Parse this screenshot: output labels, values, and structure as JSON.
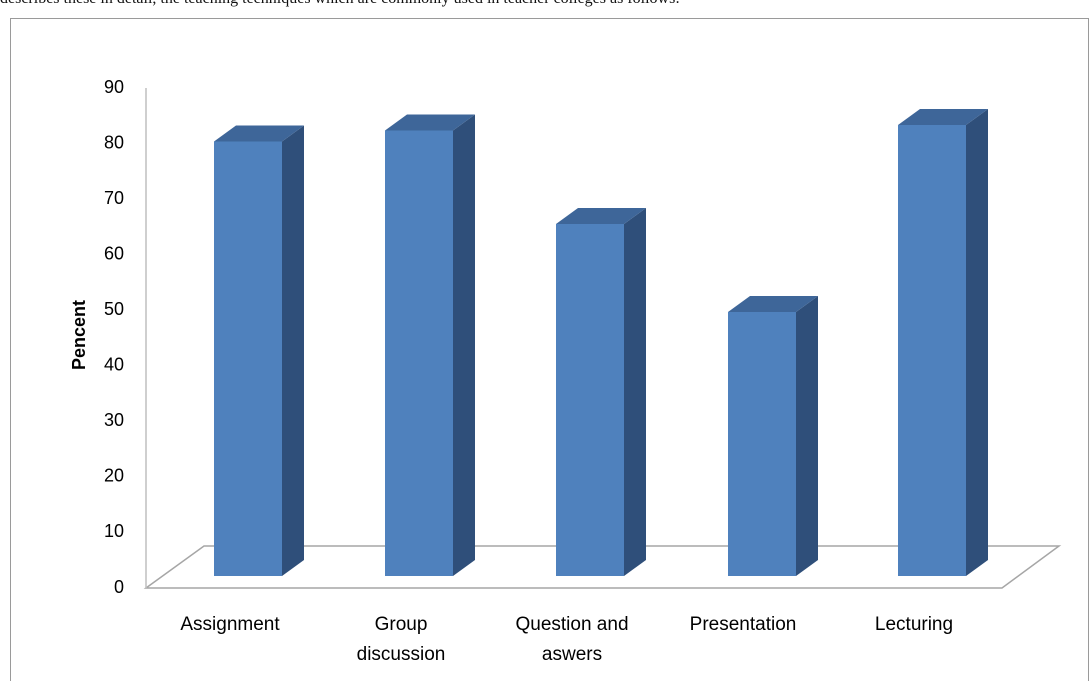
{
  "document": {
    "top_text": "describes these in detail, the teaching techniques which are commonly used in teacher colleges as follows:"
  },
  "chart_data": {
    "type": "bar",
    "categories": [
      "Assignment",
      "Group discussion",
      "Question and aswers",
      "Presentation",
      "Lecturing"
    ],
    "category_lines": [
      [
        "Assignment"
      ],
      [
        "Group",
        "discussion"
      ],
      [
        "Question and",
        "aswers"
      ],
      [
        "Presentation"
      ],
      [
        "Lecturing"
      ]
    ],
    "values": [
      79,
      81,
      64,
      48,
      82
    ],
    "ylabel": "Pencent",
    "xlabel": "",
    "title": "",
    "ylim": [
      0,
      90
    ],
    "yticks": [
      0,
      10,
      20,
      30,
      40,
      50,
      60,
      70,
      80,
      90
    ],
    "style": "3d-column",
    "grid": false,
    "colors": {
      "front": "#4f81bd",
      "side": "#2f4f7a",
      "top": "#3e6699",
      "floor": "#a6a6a6"
    }
  }
}
